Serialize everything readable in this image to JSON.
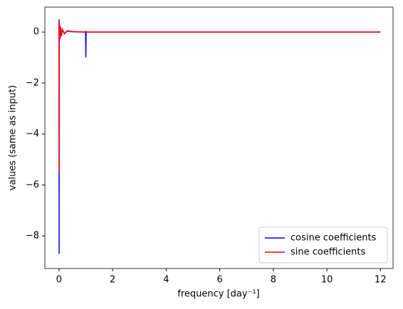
{
  "chart_data": {
    "type": "line",
    "xlabel": "frequency [day⁻¹]",
    "ylabel": "values (same as input)",
    "x": [
      0,
      0.004,
      0.008,
      0.015,
      0.025,
      0.04,
      0.06,
      0.09,
      0.13,
      0.2,
      0.3,
      0.5,
      0.98,
      0.99,
      1.0,
      1.01,
      1.02,
      2,
      4,
      6,
      8,
      10,
      12
    ],
    "series": [
      {
        "name": "cosine coefficients",
        "color": "#0000ff",
        "values": [
          0.5,
          -8.7,
          0.4,
          -0.35,
          0.3,
          -0.25,
          0.2,
          -0.15,
          0.1,
          -0.07,
          0.04,
          0.01,
          0.0,
          0.01,
          -1.0,
          0.0,
          0.0,
          0.0,
          0.0,
          0.0,
          0.0,
          0.0,
          0.0
        ]
      },
      {
        "name": "sine coefficients",
        "color": "#ff0000",
        "values": [
          0.45,
          -5.5,
          0.38,
          -0.32,
          0.28,
          -0.22,
          0.18,
          -0.14,
          0.1,
          -0.07,
          0.05,
          0.02,
          0.0,
          0.02,
          0.03,
          0.0,
          0.0,
          0.0,
          0.0,
          0.0,
          0.0,
          0.0,
          0.0
        ]
      }
    ],
    "xlim": [
      -0.53,
      12.47
    ],
    "ylim": [
      -9.28,
      0.98
    ],
    "xticks": [
      0,
      2,
      4,
      6,
      8,
      10,
      12
    ],
    "yticks": [
      {
        "value": -8,
        "label": "−8"
      },
      {
        "value": -6,
        "label": "−6"
      },
      {
        "value": -4,
        "label": "−4"
      },
      {
        "value": -2,
        "label": "−2"
      },
      0
    ],
    "legend": "lower right"
  }
}
